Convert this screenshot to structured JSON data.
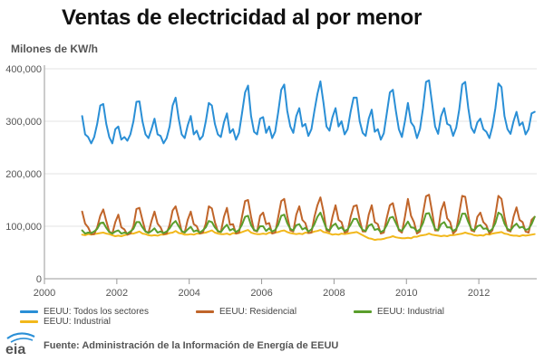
{
  "title": "Ventas de electricidad al por menor",
  "unit_label": "Milones de KW/h",
  "source": "Fuente: Administración de la Información de Energía de EEUU",
  "logo_text": "eia",
  "chart_data": {
    "type": "line",
    "x_ticks": [
      2000,
      2002,
      2004,
      2006,
      2008,
      2010,
      2012
    ],
    "y_ticks": [
      0,
      100000,
      200000,
      300000,
      400000
    ],
    "y_tick_labels": [
      "0",
      "100,000",
      "200,000",
      "300,000",
      "400,000"
    ],
    "xlim": [
      2000,
      2013.6
    ],
    "ylim": [
      0,
      400000
    ],
    "grid": "horizontal",
    "legend_position": "bottom",
    "series": [
      {
        "name": "EEUU: Todos los sectores",
        "color": "#2a8fd6",
        "start": 2001,
        "monthly": [
          310000,
          275000,
          270000,
          258000,
          270000,
          295000,
          330000,
          333000,
          295000,
          270000,
          258000,
          285000,
          290000,
          265000,
          270000,
          263000,
          275000,
          300000,
          337000,
          338000,
          300000,
          275000,
          268000,
          285000,
          305000,
          275000,
          272000,
          258000,
          268000,
          290000,
          330000,
          345000,
          305000,
          275000,
          268000,
          292000,
          310000,
          275000,
          282000,
          265000,
          272000,
          300000,
          335000,
          330000,
          295000,
          275000,
          270000,
          298000,
          315000,
          278000,
          285000,
          265000,
          278000,
          315000,
          355000,
          368000,
          310000,
          280000,
          275000,
          305000,
          308000,
          278000,
          290000,
          268000,
          280000,
          318000,
          360000,
          370000,
          320000,
          290000,
          278000,
          310000,
          325000,
          290000,
          295000,
          272000,
          285000,
          320000,
          352000,
          376000,
          335000,
          290000,
          282000,
          308000,
          325000,
          290000,
          300000,
          275000,
          285000,
          318000,
          345000,
          345000,
          300000,
          278000,
          272000,
          305000,
          322000,
          280000,
          285000,
          265000,
          277000,
          315000,
          355000,
          360000,
          320000,
          285000,
          270000,
          300000,
          335000,
          298000,
          290000,
          268000,
          285000,
          325000,
          375000,
          378000,
          335000,
          290000,
          276000,
          310000,
          325000,
          295000,
          292000,
          272000,
          288000,
          322000,
          370000,
          375000,
          325000,
          288000,
          278000,
          298000,
          305000,
          285000,
          280000,
          268000,
          290000,
          325000,
          372000,
          365000,
          310000,
          285000,
          276000,
          300000,
          318000,
          292000,
          298000,
          275000,
          285000,
          315000,
          318000
        ]
      },
      {
        "name": "EEUU: Residencial",
        "color": "#c0652a",
        "start": 2001,
        "monthly": [
          128000,
          105000,
          98000,
          85000,
          85000,
          98000,
          120000,
          132000,
          110000,
          90000,
          86000,
          108000,
          122000,
          98000,
          94000,
          84000,
          86000,
          100000,
          133000,
          135000,
          112000,
          90000,
          88000,
          110000,
          128000,
          105000,
          98000,
          85000,
          86000,
          103000,
          130000,
          138000,
          115000,
          90000,
          88000,
          112000,
          128000,
          104000,
          100000,
          86000,
          88000,
          105000,
          138000,
          134000,
          108000,
          90000,
          89000,
          118000,
          135000,
          103000,
          104000,
          86000,
          88000,
          118000,
          148000,
          150000,
          118000,
          92000,
          90000,
          120000,
          126000,
          104000,
          106000,
          86000,
          88000,
          118000,
          148000,
          152000,
          120000,
          92000,
          90000,
          122000,
          138000,
          112000,
          106000,
          87000,
          88000,
          118000,
          140000,
          155000,
          128000,
          92000,
          90000,
          118000,
          140000,
          112000,
          108000,
          88000,
          90000,
          118000,
          138000,
          140000,
          112000,
          90000,
          90000,
          122000,
          140000,
          108000,
          104000,
          86000,
          88000,
          116000,
          140000,
          144000,
          118000,
          92000,
          88000,
          118000,
          152000,
          120000,
          108000,
          86000,
          90000,
          125000,
          157000,
          160000,
          128000,
          92000,
          92000,
          130000,
          146000,
          115000,
          108000,
          86000,
          92000,
          125000,
          158000,
          156000,
          120000,
          92000,
          90000,
          118000,
          126000,
          108000,
          102000,
          86000,
          92000,
          122000,
          158000,
          152000,
          118000,
          92000,
          90000,
          118000,
          136000,
          112000,
          108000,
          90000,
          88000,
          112000,
          118000
        ]
      },
      {
        "name": "EEUU: Industrial",
        "color": "#5a9e2c",
        "start": 2001,
        "monthly": [
          92000,
          86000,
          88000,
          87000,
          90000,
          95000,
          106000,
          107000,
          97000,
          89000,
          86000,
          90000,
          92000,
          86000,
          88000,
          86000,
          90000,
          95000,
          108000,
          108000,
          98000,
          90000,
          87000,
          91000,
          96000,
          88000,
          90000,
          87000,
          90000,
          96000,
          105000,
          110000,
          100000,
          91000,
          88000,
          94000,
          99000,
          90000,
          92000,
          88000,
          92000,
          98000,
          110000,
          108000,
          98000,
          91000,
          89000,
          97000,
          103000,
          92000,
          95000,
          89000,
          93000,
          103000,
          118000,
          120000,
          102000,
          93000,
          91000,
          100000,
          100000,
          91000,
          96000,
          90000,
          93000,
          103000,
          120000,
          122000,
          106000,
          95000,
          92000,
          102000,
          104000,
          94000,
          97000,
          90000,
          94000,
          104000,
          118000,
          126000,
          110000,
          95000,
          92000,
          101000,
          105000,
          95000,
          98000,
          91000,
          94000,
          103000,
          114000,
          114000,
          101000,
          93000,
          91000,
          101000,
          104000,
          93000,
          95000,
          89000,
          92000,
          102000,
          116000,
          118000,
          106000,
          94000,
          91000,
          100000,
          109000,
          98000,
          97000,
          90000,
          94000,
          106000,
          124000,
          125000,
          110000,
          95000,
          92000,
          104000,
          108000,
          98000,
          98000,
          91000,
          95000,
          106000,
          124000,
          124000,
          108000,
          95000,
          92000,
          100000,
          102000,
          95000,
          96000,
          90000,
          95000,
          106000,
          126000,
          122000,
          105000,
          95000,
          92000,
          100000,
          105000,
          97000,
          99000,
          93000,
          95000,
          104000,
          118000
        ]
      },
      {
        "name": "EEUU: Industrial",
        "color": "#f2b81c",
        "start": 2001,
        "monthly": [
          84000,
          83000,
          85000,
          84000,
          85000,
          86000,
          87000,
          88000,
          86000,
          85000,
          83000,
          81000,
          82000,
          81000,
          83000,
          84000,
          86000,
          86000,
          88000,
          90000,
          86000,
          85000,
          83000,
          82000,
          83000,
          82000,
          84000,
          84000,
          85000,
          87000,
          88000,
          91000,
          87000,
          86000,
          84000,
          84000,
          85000,
          84000,
          86000,
          86000,
          87000,
          88000,
          90000,
          92000,
          88000,
          86000,
          85000,
          85000,
          86000,
          84000,
          87000,
          86000,
          87000,
          89000,
          91000,
          93000,
          88000,
          86000,
          85000,
          85000,
          86000,
          85000,
          88000,
          87000,
          88000,
          89000,
          91000,
          92000,
          89000,
          87000,
          86000,
          85000,
          86000,
          85000,
          88000,
          87000,
          88000,
          90000,
          91000,
          93000,
          89000,
          88000,
          86000,
          84000,
          85000,
          84000,
          86000,
          85000,
          86000,
          87000,
          88000,
          89000,
          86000,
          83000,
          80000,
          77000,
          76000,
          74000,
          75000,
          75000,
          76000,
          78000,
          79000,
          81000,
          79000,
          78000,
          77000,
          77000,
          78000,
          77000,
          80000,
          80000,
          82000,
          83000,
          84000,
          86000,
          84000,
          83000,
          82000,
          81000,
          82000,
          81000,
          83000,
          83000,
          84000,
          85000,
          86000,
          88000,
          86000,
          85000,
          83000,
          82000,
          83000,
          82000,
          85000,
          84000,
          86000,
          87000,
          88000,
          89000,
          86000,
          85000,
          83000,
          82000,
          82000,
          81000,
          83000,
          82000,
          83000,
          84000,
          85000
        ]
      }
    ]
  }
}
